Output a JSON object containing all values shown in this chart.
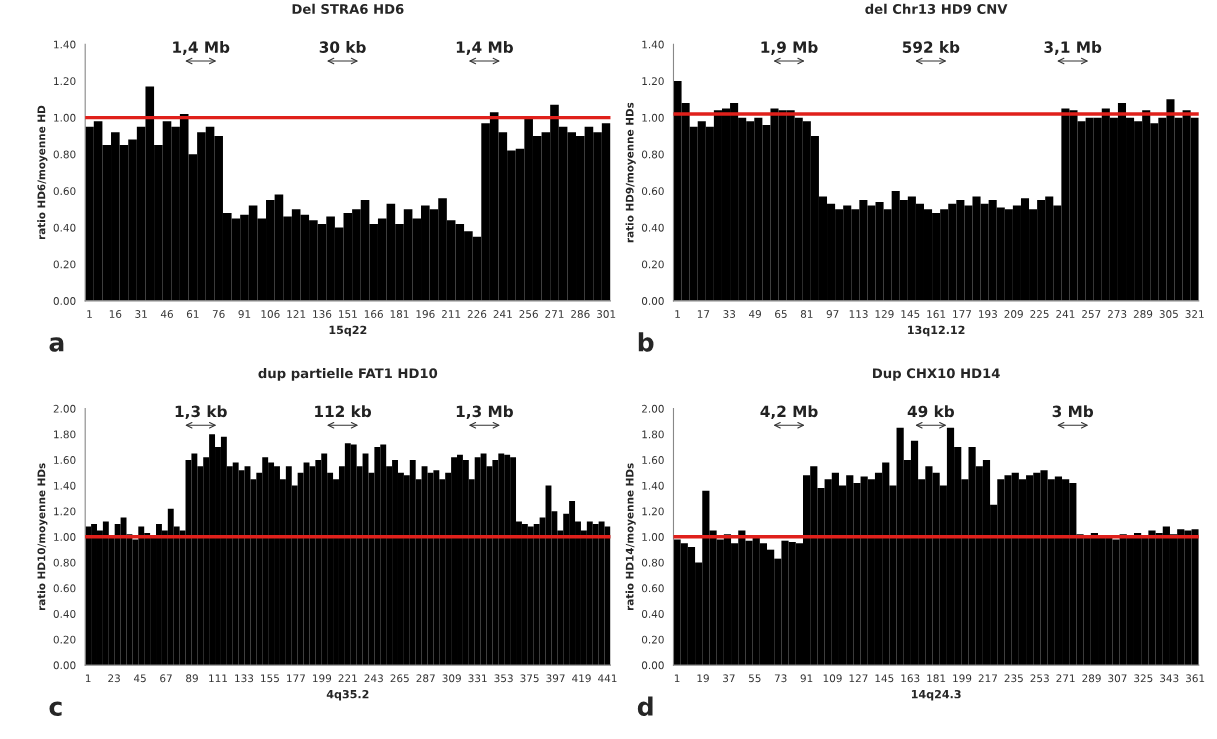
{
  "chart_data": [
    {
      "type": "bar",
      "title": "Del STRA6 HD6",
      "xlabel": "15q22",
      "ylabel": "ratio HD6/moyenne HD",
      "color": "#000000",
      "x": [
        1,
        6,
        11,
        16,
        21,
        26,
        31,
        36,
        41,
        46,
        51,
        56,
        61,
        66,
        71,
        76,
        81,
        86,
        91,
        96,
        101,
        106,
        111,
        116,
        121,
        126,
        131,
        136,
        141,
        146,
        151,
        156,
        161,
        166,
        171,
        176,
        181,
        186,
        191,
        196,
        201,
        206,
        211,
        216,
        221,
        226,
        231,
        236,
        241,
        246,
        251,
        256,
        261,
        266,
        271,
        276,
        281,
        286,
        291,
        296,
        301
      ],
      "values": [
        0.95,
        0.98,
        0.85,
        0.92,
        0.85,
        0.88,
        0.95,
        1.17,
        0.85,
        0.98,
        0.95,
        1.02,
        0.8,
        0.92,
        0.95,
        0.9,
        0.48,
        0.45,
        0.47,
        0.52,
        0.45,
        0.55,
        0.58,
        0.46,
        0.5,
        0.47,
        0.44,
        0.42,
        0.46,
        0.4,
        0.48,
        0.5,
        0.55,
        0.42,
        0.45,
        0.53,
        0.42,
        0.5,
        0.45,
        0.52,
        0.5,
        0.56,
        0.44,
        0.42,
        0.38,
        0.35,
        0.97,
        1.03,
        0.92,
        0.82,
        0.83,
        1.0,
        0.9,
        0.92,
        1.07,
        0.95,
        0.92,
        0.9,
        0.95,
        0.92,
        0.97
      ],
      "xlim": [
        -1.5,
        303.5
      ],
      "xticks": [
        1,
        16,
        31,
        46,
        61,
        76,
        91,
        106,
        121,
        136,
        151,
        166,
        181,
        196,
        211,
        226,
        241,
        256,
        271,
        286,
        301
      ],
      "ylim": [
        0,
        1.4
      ],
      "yticks": [
        {
          "value": 0,
          "label": "0.00"
        },
        {
          "value": 0.2,
          "label": "0.20"
        },
        {
          "value": 0.4,
          "label": "0.40"
        },
        {
          "value": 0.6,
          "label": "0.60"
        },
        {
          "value": 0.8,
          "label": "0.80"
        },
        {
          "value": 1.0,
          "label": "1.00"
        },
        {
          "value": 1.2,
          "label": "1.20"
        },
        {
          "value": 1.4,
          "label": "1.40"
        }
      ],
      "ref_lines": [
        {
          "axis": "y",
          "value": 1.0,
          "color": "#e0201b"
        }
      ],
      "annotations": [
        "1,4 Mb",
        "30 kb",
        "1,4 Mb",
        "a"
      ]
    },
    {
      "type": "bar",
      "title": "del Chr13 HD9 CNV",
      "xlabel": "13q12.12",
      "ylabel": "ratio HD9/moyenne HDs",
      "color": "#000000",
      "x": [
        1,
        6,
        11,
        16,
        21,
        26,
        31,
        36,
        41,
        46,
        51,
        56,
        61,
        66,
        71,
        76,
        81,
        86,
        91,
        96,
        101,
        106,
        111,
        116,
        121,
        126,
        131,
        136,
        141,
        146,
        151,
        156,
        161,
        166,
        171,
        176,
        181,
        186,
        191,
        196,
        201,
        206,
        211,
        216,
        221,
        226,
        231,
        236,
        241,
        246,
        251,
        256,
        261,
        266,
        271,
        276,
        281,
        286,
        291,
        296,
        301,
        306,
        311,
        316,
        321
      ],
      "values": [
        1.2,
        1.08,
        0.95,
        0.98,
        0.95,
        1.04,
        1.05,
        1.08,
        1.0,
        0.98,
        1.0,
        0.96,
        1.05,
        1.04,
        1.04,
        1.0,
        0.98,
        0.9,
        0.57,
        0.53,
        0.5,
        0.52,
        0.5,
        0.55,
        0.52,
        0.54,
        0.5,
        0.6,
        0.55,
        0.57,
        0.53,
        0.5,
        0.48,
        0.5,
        0.53,
        0.55,
        0.52,
        0.57,
        0.53,
        0.55,
        0.51,
        0.5,
        0.52,
        0.56,
        0.5,
        0.55,
        0.57,
        0.52,
        1.05,
        1.04,
        0.98,
        1.0,
        1.0,
        1.05,
        1.0,
        1.08,
        1.0,
        0.98,
        1.04,
        0.97,
        1.0,
        1.1,
        1.0,
        1.04,
        1.0
      ],
      "xlim": [
        -1.5,
        323.5
      ],
      "xticks": [
        1,
        17,
        33,
        49,
        65,
        81,
        97,
        113,
        129,
        145,
        161,
        177,
        193,
        209,
        225,
        241,
        257,
        273,
        289,
        305,
        321
      ],
      "ylim": [
        0,
        1.4
      ],
      "yticks": [
        {
          "value": 0,
          "label": "0.00"
        },
        {
          "value": 0.2,
          "label": "0.20"
        },
        {
          "value": 0.4,
          "label": "0.40"
        },
        {
          "value": 0.6,
          "label": "0.60"
        },
        {
          "value": 0.8,
          "label": "0.80"
        },
        {
          "value": 1.0,
          "label": "1.00"
        },
        {
          "value": 1.2,
          "label": "1.20"
        },
        {
          "value": 1.4,
          "label": "1.40"
        }
      ],
      "ref_lines": [
        {
          "axis": "y",
          "value": 1.02,
          "color": "#e0201b"
        }
      ],
      "annotations": [
        "1,9 Mb",
        "592 kb",
        "3,1 Mb",
        "b"
      ]
    },
    {
      "type": "bar",
      "title": "dup partielle FAT1 HD10",
      "xlabel": "4q35.2",
      "ylabel": "ratio HD10/moyenne HDs",
      "color": "#000000",
      "x": [
        1,
        6,
        11,
        16,
        21,
        26,
        31,
        36,
        41,
        46,
        51,
        56,
        61,
        66,
        71,
        76,
        81,
        86,
        91,
        96,
        101,
        106,
        111,
        116,
        121,
        126,
        131,
        136,
        141,
        146,
        151,
        156,
        161,
        166,
        171,
        176,
        181,
        186,
        191,
        196,
        201,
        206,
        211,
        216,
        221,
        226,
        231,
        236,
        241,
        246,
        251,
        256,
        261,
        266,
        271,
        276,
        281,
        286,
        291,
        296,
        301,
        306,
        311,
        316,
        321,
        326,
        331,
        336,
        341,
        346,
        351,
        356,
        361,
        366,
        371,
        376,
        381,
        386,
        391,
        396,
        401,
        406,
        411,
        416,
        421,
        426,
        431,
        436,
        441
      ],
      "values": [
        1.08,
        1.1,
        1.05,
        1.12,
        1.0,
        1.1,
        1.15,
        1.02,
        0.98,
        1.08,
        1.03,
        1.0,
        1.1,
        1.05,
        1.22,
        1.08,
        1.05,
        1.6,
        1.65,
        1.55,
        1.62,
        1.8,
        1.7,
        1.78,
        1.55,
        1.58,
        1.52,
        1.55,
        1.45,
        1.5,
        1.62,
        1.58,
        1.55,
        1.45,
        1.55,
        1.4,
        1.5,
        1.58,
        1.55,
        1.6,
        1.65,
        1.5,
        1.45,
        1.55,
        1.73,
        1.72,
        1.55,
        1.65,
        1.5,
        1.7,
        1.72,
        1.55,
        1.6,
        1.5,
        1.48,
        1.6,
        1.45,
        1.55,
        1.5,
        1.52,
        1.45,
        1.5,
        1.62,
        1.64,
        1.6,
        1.45,
        1.62,
        1.65,
        1.55,
        1.6,
        1.65,
        1.64,
        1.62,
        1.12,
        1.1,
        1.08,
        1.1,
        1.15,
        1.4,
        1.2,
        1.05,
        1.18,
        1.28,
        1.12,
        1.05,
        1.12,
        1.1,
        1.12,
        1.08
      ],
      "xlim": [
        -1.5,
        443.5
      ],
      "xticks": [
        1,
        23,
        45,
        67,
        89,
        111,
        133,
        155,
        177,
        199,
        221,
        243,
        265,
        287,
        309,
        331,
        353,
        375,
        397,
        419,
        441
      ],
      "ylim": [
        0,
        2.0
      ],
      "yticks": [
        {
          "value": 0,
          "label": "0.00"
        },
        {
          "value": 0.2,
          "label": "0.20"
        },
        {
          "value": 0.4,
          "label": "0.40"
        },
        {
          "value": 0.6,
          "label": "0.60"
        },
        {
          "value": 0.8,
          "label": "0.80"
        },
        {
          "value": 1.0,
          "label": "1.00"
        },
        {
          "value": 1.2,
          "label": "1.20"
        },
        {
          "value": 1.4,
          "label": "1.40"
        },
        {
          "value": 1.6,
          "label": "1.60"
        },
        {
          "value": 1.8,
          "label": "1.80"
        },
        {
          "value": 2.0,
          "label": "2.00"
        }
      ],
      "ref_lines": [
        {
          "axis": "y",
          "value": 1.0,
          "color": "#e0201b"
        }
      ],
      "annotations": [
        "1,3 kb",
        "112 kb",
        "1,3 Mb",
        "c"
      ]
    },
    {
      "type": "bar",
      "title": "Dup CHX10 HD14",
      "xlabel": "14q24.3",
      "ylabel": "ratio HD14/moyenne HDs",
      "color": "#000000",
      "x": [
        1,
        6,
        11,
        16,
        21,
        26,
        31,
        36,
        41,
        46,
        51,
        56,
        61,
        66,
        71,
        76,
        81,
        86,
        91,
        96,
        101,
        106,
        111,
        116,
        121,
        126,
        131,
        136,
        141,
        146,
        151,
        156,
        161,
        166,
        171,
        176,
        181,
        186,
        191,
        196,
        201,
        206,
        211,
        216,
        221,
        226,
        231,
        236,
        241,
        246,
        251,
        256,
        261,
        266,
        271,
        276,
        281,
        286,
        291,
        296,
        301,
        306,
        311,
        316,
        321,
        326,
        331,
        336,
        341,
        346,
        351,
        356,
        361
      ],
      "values": [
        0.98,
        0.95,
        0.92,
        0.8,
        1.36,
        1.05,
        0.98,
        1.02,
        0.95,
        1.05,
        0.97,
        1.0,
        0.95,
        0.9,
        0.83,
        0.97,
        0.96,
        0.95,
        1.48,
        1.55,
        1.38,
        1.45,
        1.5,
        1.4,
        1.48,
        1.42,
        1.47,
        1.45,
        1.5,
        1.58,
        1.4,
        1.85,
        1.6,
        1.75,
        1.45,
        1.55,
        1.5,
        1.4,
        1.85,
        1.7,
        1.45,
        1.7,
        1.55,
        1.6,
        1.25,
        1.45,
        1.48,
        1.5,
        1.45,
        1.48,
        1.5,
        1.52,
        1.45,
        1.47,
        1.45,
        1.42,
        1.02,
        1.0,
        1.03,
        1.01,
        1.0,
        0.98,
        1.02,
        1.0,
        1.03,
        1.0,
        1.05,
        1.03,
        1.08,
        1.02,
        1.06,
        1.05,
        1.06
      ],
      "xlim": [
        -1.5,
        363.5
      ],
      "xticks": [
        1,
        19,
        37,
        55,
        73,
        91,
        109,
        127,
        145,
        163,
        181,
        199,
        217,
        235,
        253,
        271,
        289,
        307,
        325,
        343,
        361
      ],
      "ylim": [
        0,
        2.0
      ],
      "yticks": [
        {
          "value": 0,
          "label": "0.00"
        },
        {
          "value": 0.2,
          "label": "0.20"
        },
        {
          "value": 0.4,
          "label": "0.40"
        },
        {
          "value": 0.6,
          "label": "0.60"
        },
        {
          "value": 0.8,
          "label": "0.80"
        },
        {
          "value": 1.0,
          "label": "1.00"
        },
        {
          "value": 1.2,
          "label": "1.20"
        },
        {
          "value": 1.4,
          "label": "1.40"
        },
        {
          "value": 1.6,
          "label": "1.60"
        },
        {
          "value": 1.8,
          "label": "1.80"
        },
        {
          "value": 2.0,
          "label": "2.00"
        }
      ],
      "ref_lines": [
        {
          "axis": "y",
          "value": 1.0,
          "color": "#e0201b"
        }
      ],
      "annotations": [
        "4,2 Mb",
        "49 kb",
        "3 Mb",
        "d"
      ]
    }
  ]
}
